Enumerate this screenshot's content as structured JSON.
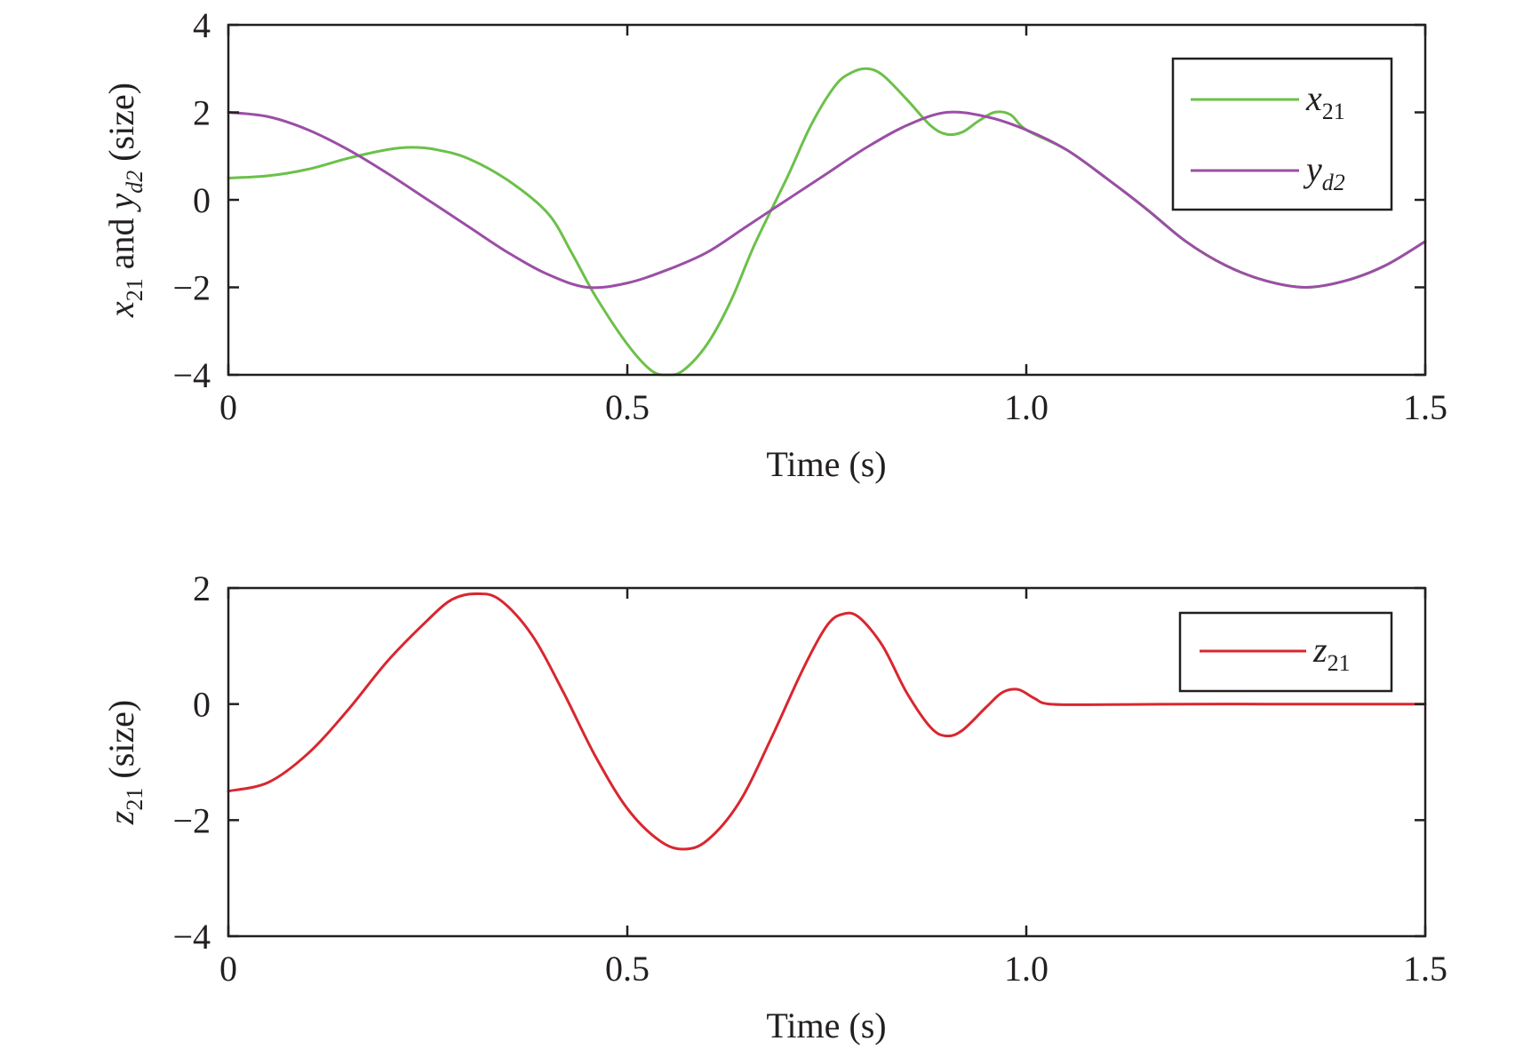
{
  "chart_data": [
    {
      "type": "line",
      "xlabel": "Time (s)",
      "ylabel": {
        "pre": "x",
        "sub1": "21",
        "mid": " and ",
        "y": "y",
        "sub2": "d2",
        "post": " (size)"
      },
      "xlim": [
        0,
        1.5
      ],
      "ylim": [
        -4,
        4
      ],
      "xticks": [
        0,
        0.5,
        1.0,
        1.5
      ],
      "xtick_labels": [
        "0",
        "0.5",
        "1.0",
        "1.5"
      ],
      "yticks": [
        -4,
        -2,
        0,
        2,
        4
      ],
      "ytick_labels": [
        "−4",
        "−2",
        "0",
        "2",
        "4"
      ],
      "grid": false,
      "legend_position": "top-right",
      "series": [
        {
          "name": "x21",
          "label_main": "x",
          "label_sub": "21",
          "color": "#6cc04a",
          "points": [
            [
              0,
              0.5
            ],
            [
              0.05,
              0.55
            ],
            [
              0.1,
              0.7
            ],
            [
              0.15,
              0.95
            ],
            [
              0.2,
              1.15
            ],
            [
              0.23,
              1.2
            ],
            [
              0.26,
              1.15
            ],
            [
              0.3,
              0.95
            ],
            [
              0.35,
              0.45
            ],
            [
              0.4,
              -0.3
            ],
            [
              0.43,
              -1.2
            ],
            [
              0.46,
              -2.2
            ],
            [
              0.5,
              -3.3
            ],
            [
              0.53,
              -3.9
            ],
            [
              0.55,
              -4.0
            ],
            [
              0.57,
              -3.9
            ],
            [
              0.6,
              -3.3
            ],
            [
              0.63,
              -2.3
            ],
            [
              0.66,
              -1.0
            ],
            [
              0.7,
              0.5
            ],
            [
              0.73,
              1.7
            ],
            [
              0.76,
              2.6
            ],
            [
              0.78,
              2.9
            ],
            [
              0.8,
              3.0
            ],
            [
              0.82,
              2.85
            ],
            [
              0.85,
              2.3
            ],
            [
              0.88,
              1.7
            ],
            [
              0.9,
              1.5
            ],
            [
              0.92,
              1.55
            ],
            [
              0.94,
              1.8
            ],
            [
              0.96,
              2.0
            ],
            [
              0.98,
              1.95
            ],
            [
              1.0,
              1.6
            ],
            [
              1.05,
              1.15
            ],
            [
              1.1,
              0.5
            ],
            [
              1.15,
              -0.2
            ],
            [
              1.2,
              -0.95
            ],
            [
              1.25,
              -1.5
            ],
            [
              1.3,
              -1.85
            ],
            [
              1.35,
              -2.0
            ],
            [
              1.4,
              -1.85
            ],
            [
              1.45,
              -1.5
            ],
            [
              1.5,
              -0.95
            ]
          ]
        },
        {
          "name": "yd2",
          "label_main": "y",
          "label_sub": "d2",
          "color": "#9b4ea6",
          "points": [
            [
              0,
              2.0
            ],
            [
              0.05,
              1.9
            ],
            [
              0.1,
              1.6
            ],
            [
              0.15,
              1.15
            ],
            [
              0.2,
              0.6
            ],
            [
              0.25,
              0.0
            ],
            [
              0.3,
              -0.6
            ],
            [
              0.35,
              -1.2
            ],
            [
              0.4,
              -1.7
            ],
            [
              0.45,
              -2.0
            ],
            [
              0.5,
              -1.9
            ],
            [
              0.55,
              -1.6
            ],
            [
              0.6,
              -1.2
            ],
            [
              0.65,
              -0.6
            ],
            [
              0.7,
              0.0
            ],
            [
              0.75,
              0.6
            ],
            [
              0.8,
              1.2
            ],
            [
              0.85,
              1.7
            ],
            [
              0.9,
              2.0
            ],
            [
              0.95,
              1.9
            ],
            [
              1.0,
              1.6
            ],
            [
              1.05,
              1.15
            ],
            [
              1.1,
              0.5
            ],
            [
              1.15,
              -0.2
            ],
            [
              1.2,
              -0.95
            ],
            [
              1.25,
              -1.5
            ],
            [
              1.3,
              -1.85
            ],
            [
              1.35,
              -2.0
            ],
            [
              1.4,
              -1.85
            ],
            [
              1.45,
              -1.5
            ],
            [
              1.5,
              -0.95
            ]
          ]
        }
      ]
    },
    {
      "type": "line",
      "xlabel": "Time (s)",
      "ylabel": {
        "pre": "z",
        "sub1": "21",
        "post": " (size)"
      },
      "xlim": [
        0,
        1.5
      ],
      "ylim": [
        -4,
        2
      ],
      "xticks": [
        0,
        0.5,
        1.0,
        1.5
      ],
      "xtick_labels": [
        "0",
        "0.5",
        "1.0",
        "1.5"
      ],
      "yticks": [
        -4,
        -2,
        0,
        2
      ],
      "ytick_labels": [
        "−4",
        "−2",
        "0",
        "2"
      ],
      "grid": false,
      "legend_position": "top-right",
      "series": [
        {
          "name": "z21",
          "label_main": "z",
          "label_sub": "21",
          "color": "#d9262f",
          "points": [
            [
              0,
              -1.5
            ],
            [
              0.05,
              -1.35
            ],
            [
              0.1,
              -0.85
            ],
            [
              0.15,
              -0.1
            ],
            [
              0.2,
              0.75
            ],
            [
              0.25,
              1.45
            ],
            [
              0.28,
              1.8
            ],
            [
              0.31,
              1.9
            ],
            [
              0.34,
              1.8
            ],
            [
              0.38,
              1.2
            ],
            [
              0.42,
              0.2
            ],
            [
              0.46,
              -0.9
            ],
            [
              0.5,
              -1.8
            ],
            [
              0.54,
              -2.35
            ],
            [
              0.57,
              -2.5
            ],
            [
              0.6,
              -2.35
            ],
            [
              0.64,
              -1.7
            ],
            [
              0.68,
              -0.6
            ],
            [
              0.72,
              0.6
            ],
            [
              0.75,
              1.35
            ],
            [
              0.77,
              1.55
            ],
            [
              0.79,
              1.5
            ],
            [
              0.82,
              1.0
            ],
            [
              0.85,
              0.2
            ],
            [
              0.88,
              -0.4
            ],
            [
              0.9,
              -0.55
            ],
            [
              0.92,
              -0.45
            ],
            [
              0.95,
              -0.05
            ],
            [
              0.97,
              0.2
            ],
            [
              0.99,
              0.25
            ],
            [
              1.01,
              0.1
            ],
            [
              1.03,
              0.0
            ],
            [
              1.1,
              -0.01
            ],
            [
              1.2,
              0.0
            ],
            [
              1.3,
              0.0
            ],
            [
              1.4,
              0.0
            ],
            [
              1.5,
              0.0
            ]
          ]
        }
      ]
    }
  ]
}
